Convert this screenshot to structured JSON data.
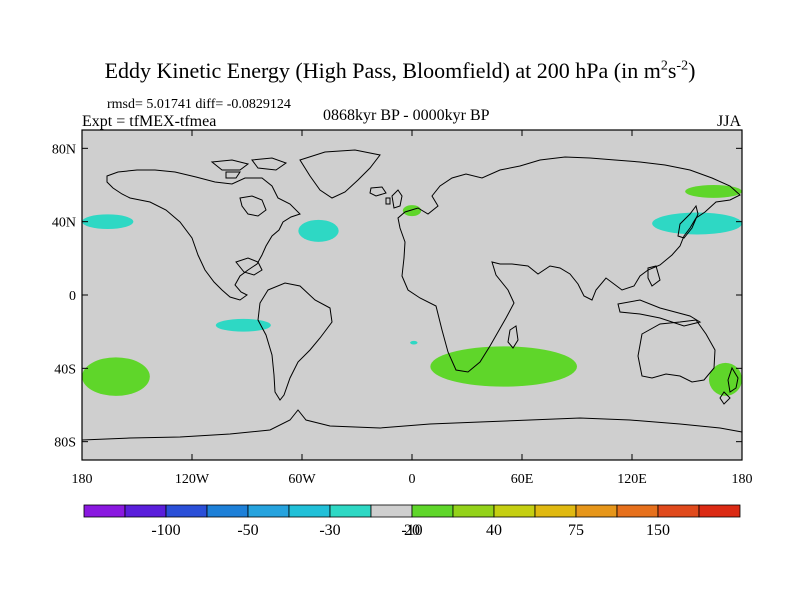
{
  "title": {
    "main": "Eddy Kinetic Energy (High Pass, Bloomfield) at 200 hPa (in m",
    "exp1": "2",
    "mid": "s",
    "exp2": "-2",
    "end": ")"
  },
  "stats_line": "rmsd= 5.01741 diff= -0.0829124",
  "experiment": "Expt = tfMEX-tfmea",
  "period": "0868kyr BP - 0000kyr BP",
  "season": "JJA",
  "map": {
    "background_color": "#cfcfcf",
    "lat_ticks": [
      {
        "value": 80,
        "label": "80N"
      },
      {
        "value": 40,
        "label": "40N"
      },
      {
        "value": 0,
        "label": "0"
      },
      {
        "value": -40,
        "label": "40S"
      },
      {
        "value": -80,
        "label": "80S"
      }
    ],
    "lon_ticks": [
      {
        "value": -180,
        "label": "180"
      },
      {
        "value": -120,
        "label": "120W"
      },
      {
        "value": -60,
        "label": "60W"
      },
      {
        "value": 0,
        "label": "0"
      },
      {
        "value": 60,
        "label": "60E"
      },
      {
        "value": 120,
        "label": "120E"
      },
      {
        "value": 180,
        "label": "180"
      }
    ],
    "anomaly_regions": [
      {
        "name": "north-pacific-east-negative",
        "color": "#2ed8c4",
        "lon_range": [
          -180,
          -152
        ],
        "lat_range": [
          36,
          44
        ]
      },
      {
        "name": "north-atlantic-negative",
        "color": "#2ed8c4",
        "lon_range": [
          -62,
          -40
        ],
        "lat_range": [
          29,
          41
        ]
      },
      {
        "name": "south-pacific-negative",
        "color": "#2ed8c4",
        "lon_range": [
          -107,
          -77
        ],
        "lat_range": [
          -20,
          -13
        ]
      },
      {
        "name": "east-asia-pacific-negative",
        "color": "#2ed8c4",
        "lon_range": [
          131,
          180
        ],
        "lat_range": [
          33,
          45
        ]
      },
      {
        "name": "south-atlantic-small-negative",
        "color": "#2ed8c4",
        "lon_range": [
          -1,
          3
        ],
        "lat_range": [
          -27,
          -25
        ]
      },
      {
        "name": "europe-positive",
        "color": "#5fd62a",
        "lon_range": [
          -5,
          5
        ],
        "lat_range": [
          43,
          49
        ]
      },
      {
        "name": "north-pacific-west-positive",
        "color": "#5fd62a",
        "lon_range": [
          149,
          180
        ],
        "lat_range": [
          53,
          60
        ]
      },
      {
        "name": "south-pacific-positive",
        "color": "#5fd62a",
        "lon_range": [
          -180,
          -143
        ],
        "lat_range": [
          -55,
          -34
        ]
      },
      {
        "name": "indian-ocean-positive",
        "color": "#5fd62a",
        "lon_range": [
          10,
          90
        ],
        "lat_range": [
          -50,
          -28
        ]
      },
      {
        "name": "new-zealand-positive",
        "color": "#5fd62a",
        "lon_range": [
          162,
          180
        ],
        "lat_range": [
          -55,
          -37
        ]
      }
    ]
  },
  "colorbar": {
    "colors": [
      "#8a18e0",
      "#5a1edb",
      "#2a4fd8",
      "#1d80d8",
      "#26a3de",
      "#21c0d8",
      "#2ed8c4",
      "#cfcfcf",
      "#5fd62a",
      "#93d21a",
      "#c5cf12",
      "#e0b911",
      "#e6961a",
      "#e6701c",
      "#e04a1c",
      "#db2a14"
    ],
    "labels": [
      "-100",
      "-50",
      "-30",
      "-10",
      "20",
      "40",
      "75",
      "150"
    ]
  }
}
